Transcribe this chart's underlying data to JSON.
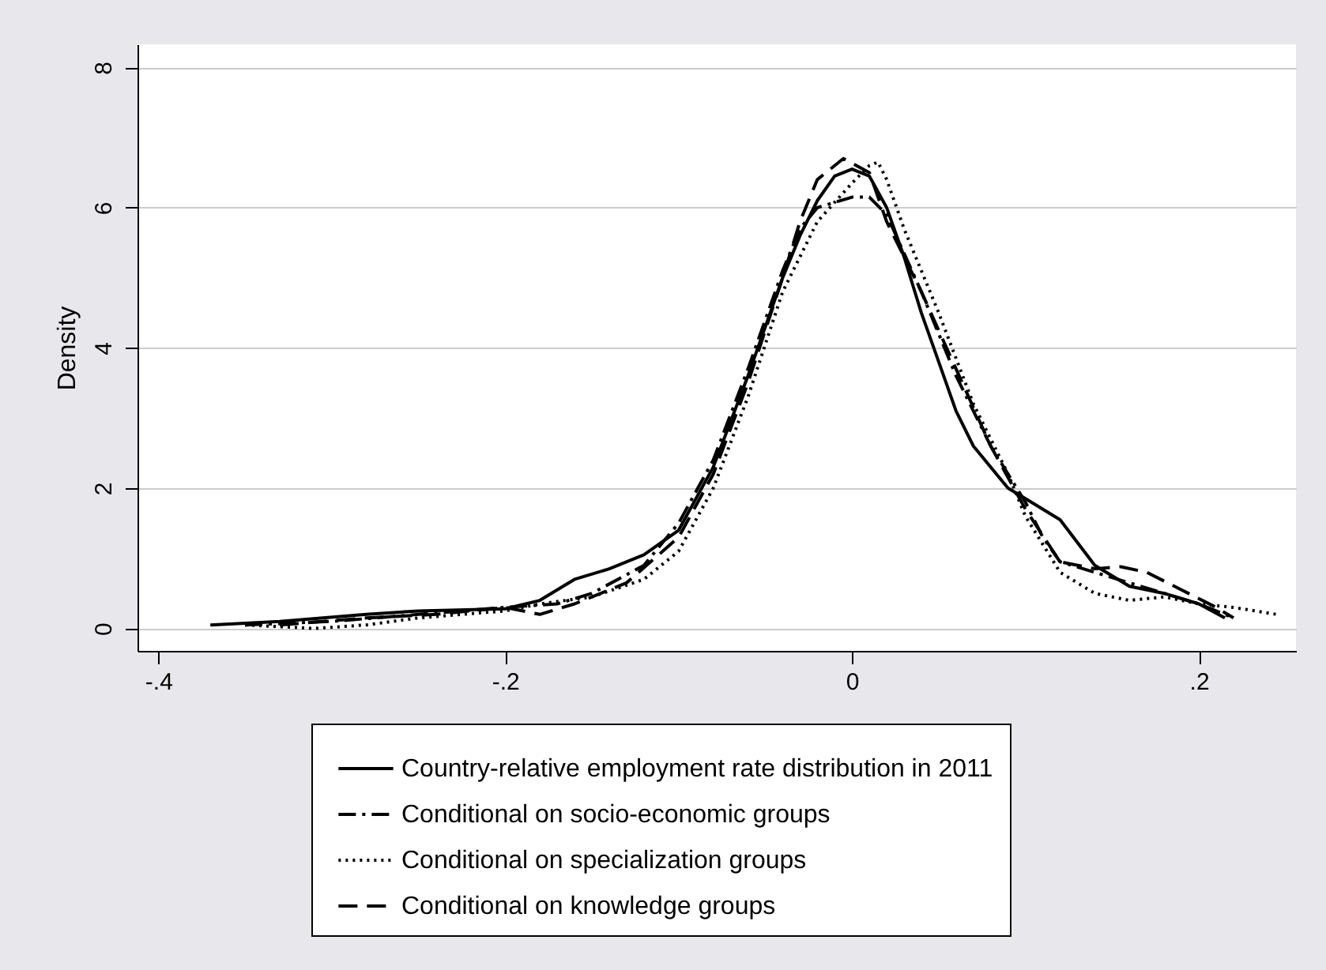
{
  "chart_data": {
    "type": "line",
    "ylabel": "Density",
    "xlim": [
      -0.412,
      0.256
    ],
    "ylim": [
      -0.32,
      8.33
    ],
    "xticks": [
      {
        "value": -0.4,
        "label": "-.4"
      },
      {
        "value": -0.2,
        "label": "-.2"
      },
      0,
      {
        "value": 0.2,
        "label": ".2"
      }
    ],
    "yticks": [
      0,
      2,
      4,
      6,
      8
    ],
    "grid": "y",
    "legend": "bottom",
    "marker": "none",
    "series": [
      {
        "name": "Country-relative employment rate distribution in 2011",
        "color": "#000000",
        "line_style": "solid",
        "x": [
          -0.37,
          -0.33,
          -0.28,
          -0.25,
          -0.2,
          -0.18,
          -0.16,
          -0.14,
          -0.12,
          -0.1,
          -0.08,
          -0.06,
          -0.04,
          -0.03,
          -0.02,
          -0.01,
          0,
          0.01,
          0.02,
          0.03,
          0.04,
          0.05,
          0.06,
          0.07,
          0.09,
          0.1,
          0.12,
          0.14,
          0.16,
          0.18,
          0.2,
          0.215
        ],
        "values": [
          0.05,
          0.1,
          0.2,
          0.25,
          0.28,
          0.4,
          0.7,
          0.85,
          1.05,
          1.4,
          2.3,
          3.6,
          5.0,
          5.6,
          6.1,
          6.45,
          6.55,
          6.45,
          6.0,
          5.3,
          4.5,
          3.8,
          3.1,
          2.6,
          2.0,
          1.85,
          1.55,
          0.9,
          0.6,
          0.5,
          0.35,
          0.15
        ]
      },
      {
        "name": "Conditional on socio-economic groups",
        "color": "#000000",
        "line_style": "dashdot",
        "x": [
          -0.35,
          -0.3,
          -0.25,
          -0.2,
          -0.17,
          -0.15,
          -0.12,
          -0.1,
          -0.08,
          -0.06,
          -0.04,
          -0.03,
          -0.02,
          0,
          0.01,
          0.02,
          0.04,
          0.06,
          0.08,
          0.1,
          0.11,
          0.12,
          0.14,
          0.16,
          0.18,
          0.2,
          0.22
        ],
        "values": [
          0.05,
          0.1,
          0.2,
          0.3,
          0.35,
          0.5,
          0.9,
          1.5,
          2.4,
          3.7,
          5.1,
          5.7,
          6.0,
          6.15,
          6.15,
          5.9,
          4.8,
          3.6,
          2.6,
          1.8,
          1.3,
          0.95,
          0.8,
          0.65,
          0.5,
          0.35,
          0.15
        ]
      },
      {
        "name": "Conditional on specialization groups",
        "color": "#000000",
        "line_style": "dotted",
        "x": [
          -0.35,
          -0.31,
          -0.28,
          -0.25,
          -0.2,
          -0.18,
          -0.15,
          -0.12,
          -0.1,
          -0.08,
          -0.06,
          -0.04,
          -0.02,
          0,
          0.01,
          0.015,
          0.02,
          0.03,
          0.05,
          0.07,
          0.09,
          0.1,
          0.12,
          0.14,
          0.16,
          0.18,
          0.2,
          0.22,
          0.245
        ],
        "values": [
          0.05,
          0.0,
          0.05,
          0.15,
          0.25,
          0.35,
          0.45,
          0.7,
          1.1,
          2.0,
          3.3,
          4.8,
          5.8,
          6.35,
          6.6,
          6.65,
          6.4,
          5.7,
          4.5,
          3.2,
          2.2,
          1.6,
          0.8,
          0.5,
          0.4,
          0.45,
          0.35,
          0.3,
          0.2
        ]
      },
      {
        "name": "Conditional on knowledge groups",
        "color": "#000000",
        "line_style": "dashed",
        "x": [
          -0.33,
          -0.28,
          -0.24,
          -0.2,
          -0.18,
          -0.16,
          -0.13,
          -0.1,
          -0.08,
          -0.06,
          -0.04,
          -0.03,
          -0.02,
          -0.005,
          0.01,
          0.02,
          0.04,
          0.06,
          0.08,
          0.1,
          0.12,
          0.14,
          0.155,
          0.17,
          0.19,
          0.21,
          0.22
        ],
        "values": [
          0.05,
          0.15,
          0.2,
          0.3,
          0.2,
          0.35,
          0.65,
          1.3,
          2.2,
          3.5,
          5.0,
          5.8,
          6.4,
          6.7,
          6.5,
          5.8,
          4.8,
          3.7,
          2.6,
          1.7,
          0.95,
          0.85,
          0.88,
          0.8,
          0.55,
          0.3,
          0.15
        ]
      }
    ]
  }
}
